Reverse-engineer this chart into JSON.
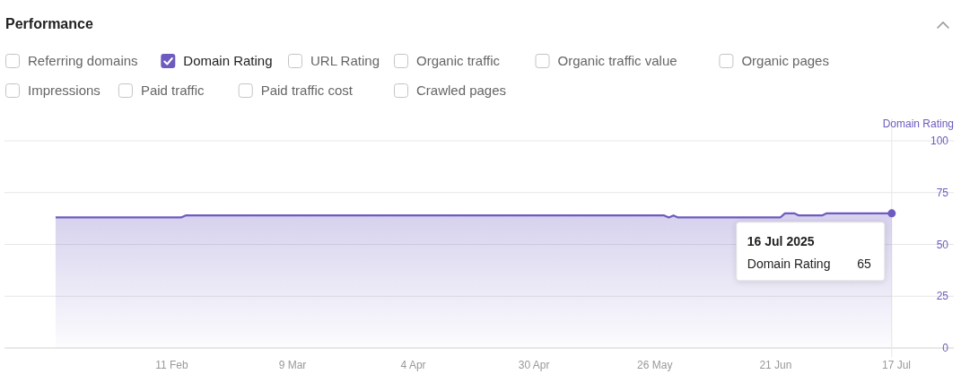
{
  "chart_data": {
    "type": "area",
    "title": "Performance",
    "ylabel": "Domain Rating",
    "x": [
      "2025-01-17",
      "2025-02-13",
      "2025-02-14",
      "2025-05-28",
      "2025-05-29",
      "2025-05-30",
      "2025-05-31",
      "2025-06-22",
      "2025-06-23",
      "2025-06-25",
      "2025-06-26",
      "2025-07-01",
      "2025-07-02",
      "2025-07-16"
    ],
    "series": [
      {
        "name": "Domain Rating",
        "color": "#6e5bbf",
        "values": [
          63,
          63,
          64,
          64,
          63,
          64,
          63,
          63,
          65,
          65,
          64,
          64,
          65,
          65
        ]
      }
    ],
    "xlim": [
      "2025-01-06",
      "2025-07-17"
    ],
    "xticks": [
      {
        "value": "2025-02-11",
        "label": "11 Feb"
      },
      {
        "value": "2025-03-09",
        "label": "9 Mar"
      },
      {
        "value": "2025-04-04",
        "label": "4 Apr"
      },
      {
        "value": "2025-04-30",
        "label": "30 Apr"
      },
      {
        "value": "2025-05-26",
        "label": "26 May"
      },
      {
        "value": "2025-06-21",
        "label": "21 Jun"
      },
      {
        "value": "2025-07-17",
        "label": "17 Jul"
      }
    ],
    "ylim": [
      0,
      100
    ],
    "yticks": [
      0,
      25,
      50,
      75,
      100
    ],
    "grid": "y",
    "legend": "top left",
    "ref_lines": [
      {
        "axis": "x",
        "value": "2025-07-16",
        "color": "#e6e6e6"
      }
    ],
    "annotations": [
      "Referring domains",
      "URL Rating",
      "Organic traffic",
      "Organic traffic value",
      "Organic pages",
      "Impressions",
      "Paid traffic",
      "Paid traffic cost",
      "Crawled pages",
      "16 Jul 2025",
      "65"
    ]
  }
}
